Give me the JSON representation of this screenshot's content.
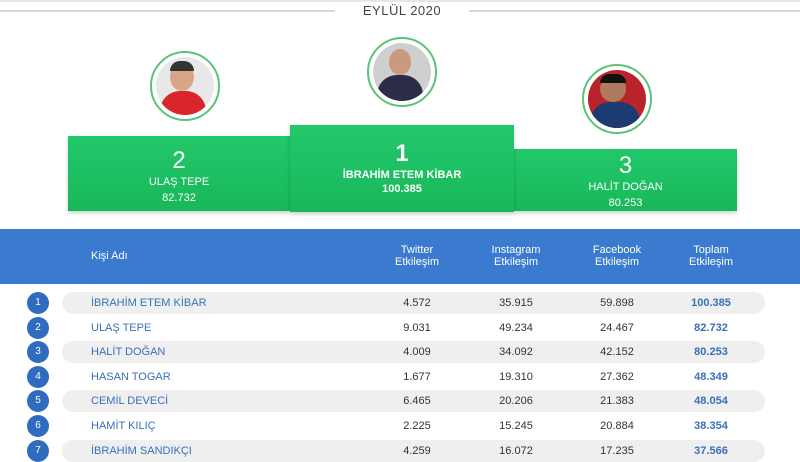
{
  "title": "EYLÜL 2020",
  "podium": [
    {
      "rank": "2",
      "name": "ULAŞ TEPE",
      "score": "82.732"
    },
    {
      "rank": "1",
      "name": "İBRAHİM ETEM KİBAR",
      "score": "100.385"
    },
    {
      "rank": "3",
      "name": "HALİT DOĞAN",
      "score": "80.253"
    }
  ],
  "table": {
    "headers": {
      "name": "Kişi Adı",
      "twitter": "Twitter Etkileşim",
      "instagram": "Instagram Etkileşim",
      "facebook": "Facebook Etkileşim",
      "total": "Toplam Etkileşim"
    },
    "rows": [
      {
        "rank": "1",
        "name": "İBRAHİM ETEM KİBAR",
        "twitter": "4.572",
        "instagram": "35.915",
        "facebook": "59.898",
        "total": "100.385"
      },
      {
        "rank": "2",
        "name": "ULAŞ TEPE",
        "twitter": "9.031",
        "instagram": "49.234",
        "facebook": "24.467",
        "total": "82.732"
      },
      {
        "rank": "3",
        "name": "HALİT DOĞAN",
        "twitter": "4.009",
        "instagram": "34.092",
        "facebook": "42.152",
        "total": "80.253"
      },
      {
        "rank": "4",
        "name": "HASAN TOGAR",
        "twitter": "1.677",
        "instagram": "19.310",
        "facebook": "27.362",
        "total": "48.349"
      },
      {
        "rank": "5",
        "name": "CEMİL DEVECİ",
        "twitter": "6.465",
        "instagram": "20.206",
        "facebook": "21.383",
        "total": "48.054"
      },
      {
        "rank": "6",
        "name": "HAMİT KILIÇ",
        "twitter": "2.225",
        "instagram": "15.245",
        "facebook": "20.884",
        "total": "38.354"
      },
      {
        "rank": "7",
        "name": "İBRAHİM SANDIKÇI",
        "twitter": "4.259",
        "instagram": "16.072",
        "facebook": "17.235",
        "total": "37.566"
      }
    ]
  },
  "colors": {
    "green": "#1fc165",
    "blue": "#3a7bd0",
    "badge": "#2f6cc0",
    "link": "#3a6fb8"
  }
}
